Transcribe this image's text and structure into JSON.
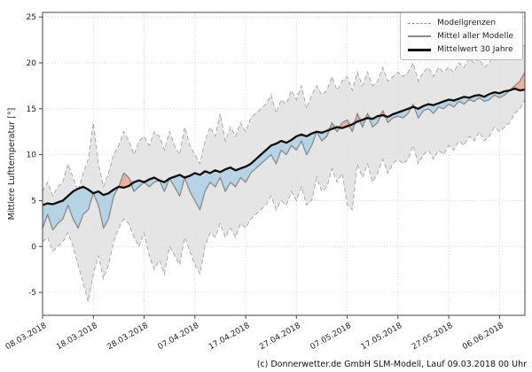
{
  "caption": "(c) Donnerwetter.de GmbH SLM-Modell, Lauf 09.03.2018 00 Uhr",
  "chart_data": {
    "type": "line",
    "title": "",
    "xlabel": "",
    "ylabel": "Mittlere Lufttemperatur [°]",
    "ylim": [
      -7.5,
      25.5
    ],
    "yticks": [
      25,
      20,
      15,
      10,
      5,
      0,
      -5
    ],
    "x_tick_labels": [
      "08.03.2018",
      "18.03.2018",
      "28.03.2018",
      "07.04.2018",
      "17.04.2018",
      "27.04.2018",
      "07.05.2018",
      "17.05.2018",
      "27.05.2018",
      "06.06.2018"
    ],
    "x_tick_positions": [
      0,
      10,
      20,
      30,
      40,
      50,
      60,
      70,
      80,
      90
    ],
    "grid": "dotted",
    "legend_position": "upper right",
    "legend": [
      "Modellgrenzen",
      "Mittel aller Modelle",
      "Mittelwert 30 Jahre"
    ],
    "colors": {
      "band_fill": "#e0e0e0",
      "band_edge": "#a9a9a9",
      "below_fill": "#b7d3e6",
      "above_fill": "#f0b0a0",
      "model_mean": "#8a8a8a",
      "mean30": "#0d0d0d"
    },
    "series": [
      {
        "key": "band_min",
        "name": "Modellgrenzen (Minimum)",
        "values": [
          0.5,
          1.0,
          -0.5,
          0.0,
          0.5,
          1.5,
          0.0,
          -2.0,
          -4.0,
          -6.0,
          -3.0,
          -1.0,
          -3.5,
          -2.0,
          0.5,
          2.0,
          3.0,
          2.5,
          1.0,
          0.0,
          1.5,
          -1.0,
          -2.5,
          -1.5,
          -3.0,
          0.0,
          -1.0,
          -2.0,
          1.0,
          -0.5,
          -2.0,
          -3.0,
          0.0,
          1.5,
          1.0,
          2.5,
          1.0,
          2.0,
          1.0,
          2.5,
          2.0,
          3.0,
          3.5,
          4.0,
          4.5,
          5.5,
          4.0,
          5.0,
          4.5,
          6.0,
          5.0,
          6.5,
          4.5,
          5.0,
          7.5,
          6.0,
          6.5,
          8.5,
          7.0,
          8.0,
          4.5,
          4.0,
          9.0,
          7.5,
          9.0,
          7.0,
          8.0,
          9.5,
          8.0,
          9.0,
          9.5,
          9.0,
          9.5,
          11.0,
          9.0,
          10.0,
          10.5,
          9.5,
          10.5,
          10.0,
          11.0,
          10.5,
          11.5,
          11.0,
          12.0,
          11.5,
          12.5,
          11.5,
          12.0,
          13.0,
          12.5,
          13.0,
          13.5,
          14.5,
          15.0,
          16.0
        ]
      },
      {
        "key": "band_max",
        "name": "Modellgrenzen (Maximum)",
        "values": [
          6.0,
          7.0,
          5.5,
          6.5,
          7.0,
          9.0,
          7.5,
          6.0,
          8.0,
          9.5,
          13.5,
          9.0,
          6.5,
          8.0,
          10.0,
          11.0,
          12.5,
          11.5,
          10.0,
          11.5,
          12.0,
          11.0,
          12.5,
          12.0,
          10.5,
          12.5,
          11.0,
          10.0,
          13.0,
          11.0,
          10.0,
          9.0,
          11.5,
          13.0,
          12.0,
          14.5,
          11.5,
          13.0,
          12.0,
          13.5,
          12.5,
          14.0,
          14.5,
          15.0,
          15.5,
          16.5,
          14.5,
          16.0,
          15.5,
          17.0,
          16.0,
          17.5,
          15.0,
          16.5,
          17.5,
          16.5,
          17.0,
          18.5,
          17.0,
          18.0,
          18.5,
          17.0,
          19.0,
          17.5,
          19.0,
          17.5,
          18.0,
          19.5,
          18.0,
          18.5,
          19.0,
          18.5,
          19.0,
          20.0,
          18.0,
          19.0,
          19.5,
          18.5,
          19.5,
          19.0,
          19.5,
          19.0,
          20.0,
          19.5,
          20.5,
          20.0,
          20.5,
          19.5,
          20.0,
          21.0,
          20.5,
          20.5,
          21.0,
          21.5,
          21.5,
          22.0
        ]
      },
      {
        "key": "model_mean",
        "name": "Mittel aller Modelle",
        "values": [
          2.0,
          3.5,
          1.8,
          2.5,
          3.0,
          4.5,
          3.0,
          2.0,
          3.5,
          4.0,
          5.8,
          4.5,
          2.0,
          3.0,
          5.5,
          6.5,
          8.0,
          7.5,
          6.0,
          6.5,
          7.0,
          6.5,
          7.0,
          7.2,
          6.0,
          7.4,
          6.5,
          5.5,
          7.5,
          6.0,
          5.0,
          4.0,
          6.0,
          7.0,
          6.5,
          7.5,
          6.0,
          7.0,
          6.5,
          7.5,
          7.0,
          8.0,
          8.5,
          9.0,
          9.5,
          10.0,
          9.0,
          10.5,
          10.0,
          11.0,
          10.5,
          11.5,
          10.0,
          11.0,
          12.5,
          11.5,
          12.0,
          13.5,
          12.5,
          13.5,
          13.8,
          12.5,
          14.5,
          13.0,
          14.5,
          13.0,
          13.5,
          14.8,
          13.5,
          14.0,
          14.2,
          14.0,
          14.5,
          15.5,
          14.0,
          14.8,
          15.0,
          14.5,
          15.2,
          15.0,
          15.5,
          15.2,
          15.8,
          15.5,
          16.0,
          15.8,
          16.2,
          15.8,
          16.0,
          16.5,
          16.2,
          16.5,
          17.0,
          17.5,
          18.0,
          19.0
        ]
      },
      {
        "key": "mean30",
        "name": "Mittelwert 30 Jahre",
        "values": [
          4.5,
          4.7,
          4.6,
          4.8,
          5.0,
          5.5,
          6.0,
          6.3,
          6.5,
          6.2,
          5.8,
          6.0,
          5.6,
          5.8,
          6.2,
          6.5,
          6.4,
          6.6,
          7.0,
          7.2,
          7.0,
          7.3,
          7.5,
          7.2,
          7.0,
          7.4,
          7.6,
          7.8,
          7.5,
          7.7,
          8.0,
          7.8,
          8.2,
          8.0,
          8.3,
          8.1,
          8.4,
          8.6,
          8.3,
          8.5,
          8.7,
          9.0,
          9.5,
          10.0,
          10.5,
          11.0,
          11.2,
          11.5,
          11.3,
          11.6,
          12.0,
          12.2,
          12.0,
          12.3,
          12.5,
          12.4,
          12.6,
          12.8,
          13.0,
          12.9,
          13.1,
          13.3,
          13.6,
          13.8,
          14.0,
          13.9,
          14.2,
          14.3,
          14.1,
          14.4,
          14.6,
          14.8,
          15.0,
          15.2,
          15.0,
          15.3,
          15.5,
          15.4,
          15.6,
          15.8,
          16.0,
          15.9,
          16.1,
          16.3,
          16.2,
          16.4,
          16.5,
          16.3,
          16.6,
          16.8,
          16.7,
          16.9,
          17.0,
          17.2,
          17.0,
          17.1
        ]
      }
    ]
  }
}
